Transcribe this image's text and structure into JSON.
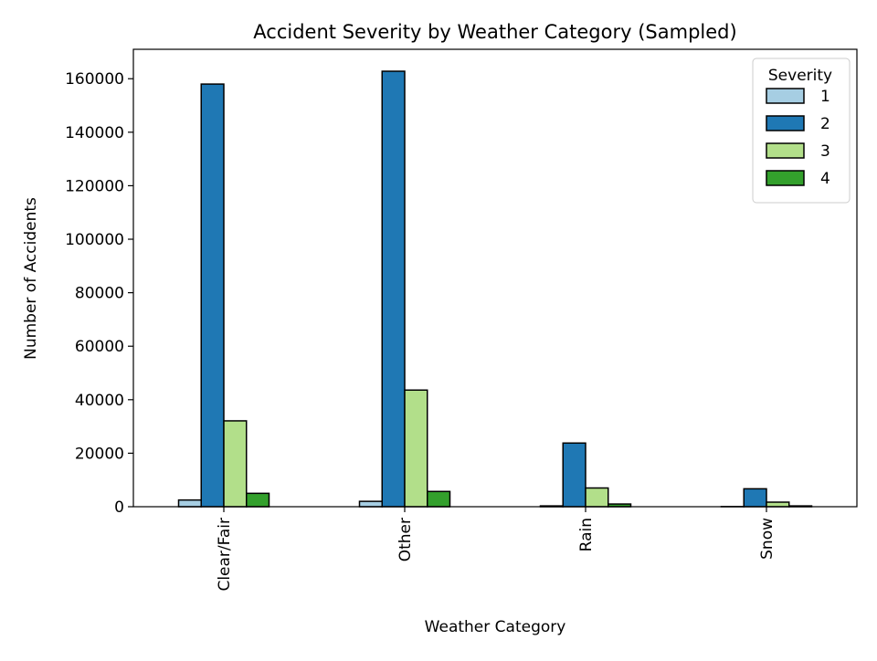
{
  "chart_data": {
    "type": "bar",
    "title": "Accident Severity by Weather Category (Sampled)",
    "xlabel": "Weather Category",
    "ylabel": "Number of Accidents",
    "categories": [
      "Clear/Fair",
      "Other",
      "Rain",
      "Snow"
    ],
    "series": [
      {
        "name": "1",
        "color": "#a6cee3",
        "values": [
          2500,
          2000,
          300,
          50
        ]
      },
      {
        "name": "2",
        "color": "#1f78b4",
        "values": [
          158000,
          162800,
          23800,
          6700
        ]
      },
      {
        "name": "3",
        "color": "#b2df8a",
        "values": [
          32100,
          43600,
          7000,
          1700
        ]
      },
      {
        "name": "4",
        "color": "#33a02c",
        "values": [
          5000,
          5700,
          1000,
          300
        ]
      }
    ],
    "ylim": [
      0,
      171000
    ],
    "yticks": [
      0,
      20000,
      40000,
      60000,
      80000,
      100000,
      120000,
      140000,
      160000
    ],
    "grid": false,
    "legend": {
      "title": "Severity",
      "placement": "top-right"
    }
  }
}
